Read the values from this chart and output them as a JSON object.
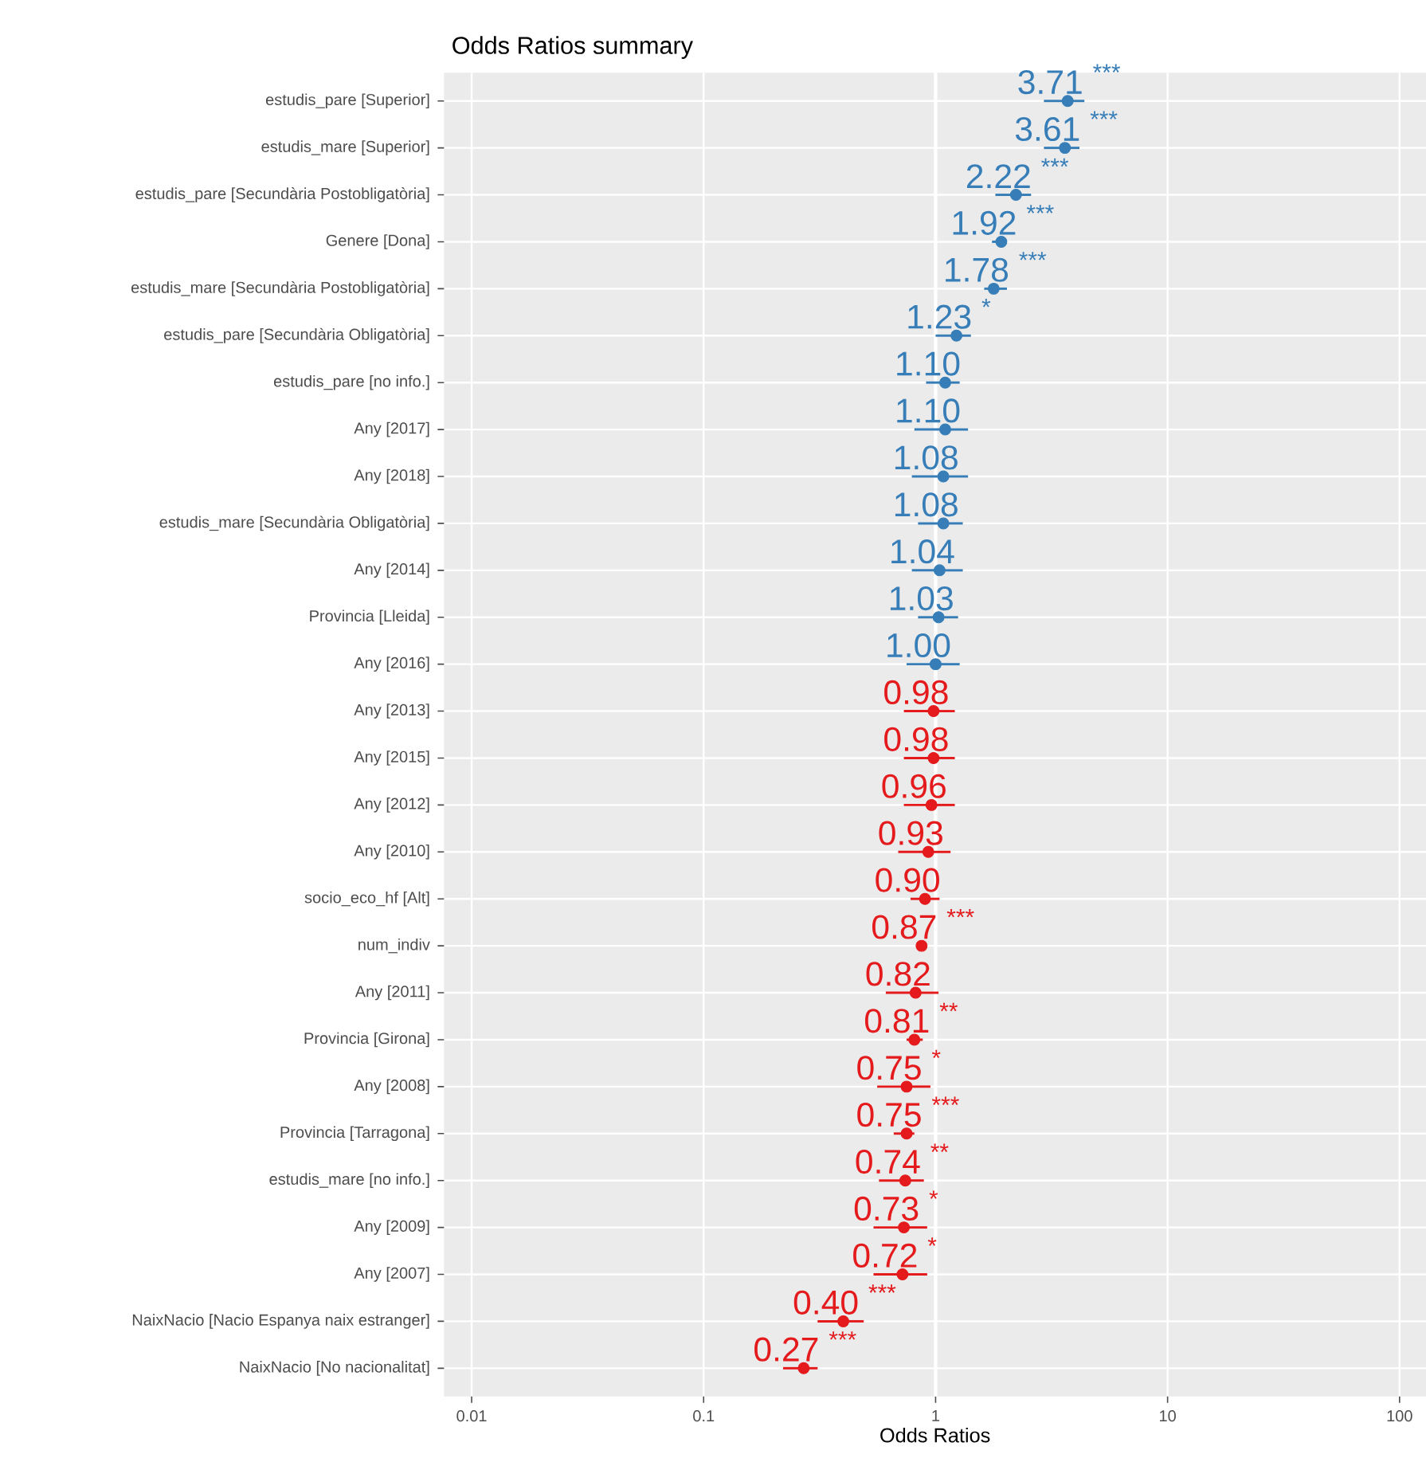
{
  "chart_data": {
    "type": "scatter",
    "orientation": "horizontal",
    "title": "Odds Ratios summary",
    "xlabel": "Odds Ratios",
    "categories": [
      "estudis_pare [Superior]",
      "estudis_mare [Superior]",
      "estudis_pare [Secundària Postobligatòria]",
      "Genere [Dona]",
      "estudis_mare [Secundària Postobligatòria]",
      "estudis_pare [Secundària Obligatòria]",
      "estudis_pare [no info.]",
      "Any [2017]",
      "Any [2018]",
      "estudis_mare [Secundària Obligatòria]",
      "Any [2014]",
      "Provincia [Lleida]",
      "Any [2016]",
      "Any [2013]",
      "Any [2015]",
      "Any [2012]",
      "Any [2010]",
      "socio_eco_hf [Alt]",
      "num_indiv",
      "Any [2011]",
      "Provincia [Girona]",
      "Any [2008]",
      "Provincia [Tarragona]",
      "estudis_mare [no info.]",
      "Any [2009]",
      "Any [2007]",
      "NaixNacio [Nacio Espanya naix estranger]",
      "NaixNacio [No nacionalitat]"
    ],
    "values": [
      3.71,
      3.61,
      2.22,
      1.92,
      1.78,
      1.23,
      1.1,
      1.1,
      1.08,
      1.08,
      1.04,
      1.03,
      1.0,
      0.98,
      0.98,
      0.96,
      0.93,
      0.9,
      0.87,
      0.82,
      0.81,
      0.75,
      0.75,
      0.74,
      0.73,
      0.72,
      0.4,
      0.27
    ],
    "errors": [
      [
        2.93,
        4.38
      ],
      [
        2.93,
        4.17
      ],
      [
        1.81,
        2.58
      ],
      [
        1.75,
        2.03
      ],
      [
        1.62,
        2.03
      ],
      [
        1.0,
        1.42
      ],
      [
        0.91,
        1.27
      ],
      [
        0.81,
        1.38
      ],
      [
        0.79,
        1.38
      ],
      [
        0.84,
        1.31
      ],
      [
        0.79,
        1.31
      ],
      [
        0.84,
        1.25
      ],
      [
        0.75,
        1.27
      ],
      [
        0.73,
        1.21
      ],
      [
        0.73,
        1.21
      ],
      [
        0.73,
        1.21
      ],
      [
        0.69,
        1.16
      ],
      [
        0.78,
        1.04
      ],
      [
        0.85,
        0.89
      ],
      [
        0.61,
        1.03
      ],
      [
        0.75,
        0.88
      ],
      [
        0.56,
        0.95
      ],
      [
        0.66,
        0.81
      ],
      [
        0.57,
        0.89
      ],
      [
        0.54,
        0.92
      ],
      [
        0.54,
        0.92
      ],
      [
        0.31,
        0.49
      ],
      [
        0.22,
        0.31
      ]
    ],
    "colors": [
      "#377eb8",
      "#377eb8",
      "#377eb8",
      "#377eb8",
      "#377eb8",
      "#377eb8",
      "#377eb8",
      "#377eb8",
      "#377eb8",
      "#377eb8",
      "#377eb8",
      "#377eb8",
      "#377eb8",
      "#e41a1c",
      "#e41a1c",
      "#e41a1c",
      "#e41a1c",
      "#e41a1c",
      "#e41a1c",
      "#e41a1c",
      "#e41a1c",
      "#e41a1c",
      "#e41a1c",
      "#e41a1c",
      "#e41a1c",
      "#e41a1c",
      "#e41a1c",
      "#e41a1c"
    ],
    "value_labels": [
      "3.71 $^{***}$",
      "3.61 $^{***}$",
      "2.22 $^{***}$",
      "1.92 $^{***}$",
      "1.78 $^{***}$",
      "1.23 $^{*}$",
      "1.10",
      "1.10",
      "1.08",
      "1.08",
      "1.04",
      "1.03",
      "1.00",
      "0.98",
      "0.98",
      "0.96",
      "0.93",
      "0.90",
      "0.87 $^{***}$",
      "0.82",
      "0.81 $^{**}$",
      "0.75 $^{*}$",
      "0.75 $^{***}$",
      "0.74 $^{**}$",
      "0.73 $^{*}$",
      "0.72 $^{*}$",
      "0.40 $^{***}$",
      "0.27 $^{***}$"
    ],
    "xlim": [
      0.0076,
      130
    ],
    "xticks": [
      0.01,
      0.1,
      1,
      10,
      100
    ],
    "log": "x",
    "grid": true,
    "ref_lines": [
      {
        "axis": "x",
        "value": 1,
        "color": "#ffffff"
      }
    ]
  }
}
